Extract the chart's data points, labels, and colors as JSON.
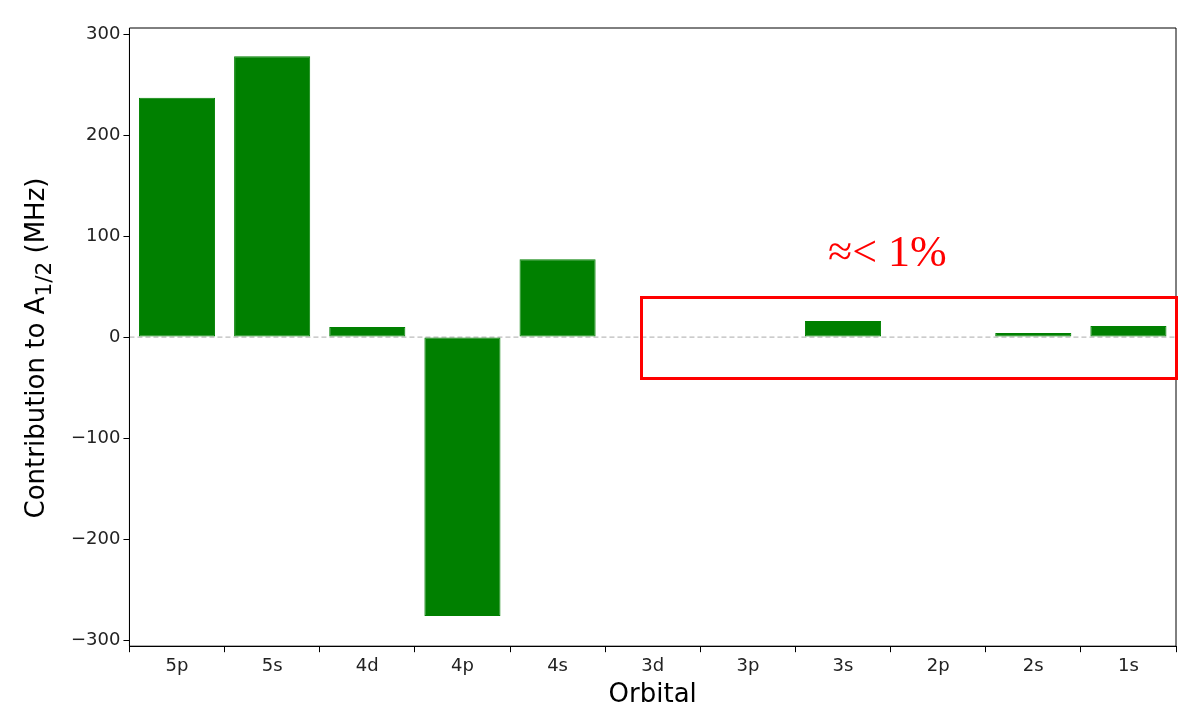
{
  "chart_data": {
    "type": "bar",
    "xlabel": "Orbital",
    "ylabel": "Contribution to A$_{1/2}$ (MHz)",
    "categories": [
      "5p",
      "5s",
      "4d",
      "4p",
      "4s",
      "3d",
      "3p",
      "3s",
      "2p",
      "2s",
      "1s"
    ],
    "values": [
      237,
      278,
      10,
      -276,
      77,
      0,
      0,
      16,
      0,
      4,
      11
    ],
    "color": "#008000",
    "ylim": [
      -306,
      306
    ],
    "yticks": [
      {
        "value": -300,
        "label": "−300"
      },
      {
        "value": -200,
        "label": "−200"
      },
      {
        "value": -100,
        "label": "−100"
      },
      0,
      100,
      200,
      300
    ],
    "grid": false,
    "legend": false,
    "ref_lines": [
      {
        "axis": "y",
        "value": 0,
        "color": "#aaaaaa",
        "line_style": "dashed"
      }
    ],
    "annotations": [
      "≈< 1%"
    ]
  }
}
